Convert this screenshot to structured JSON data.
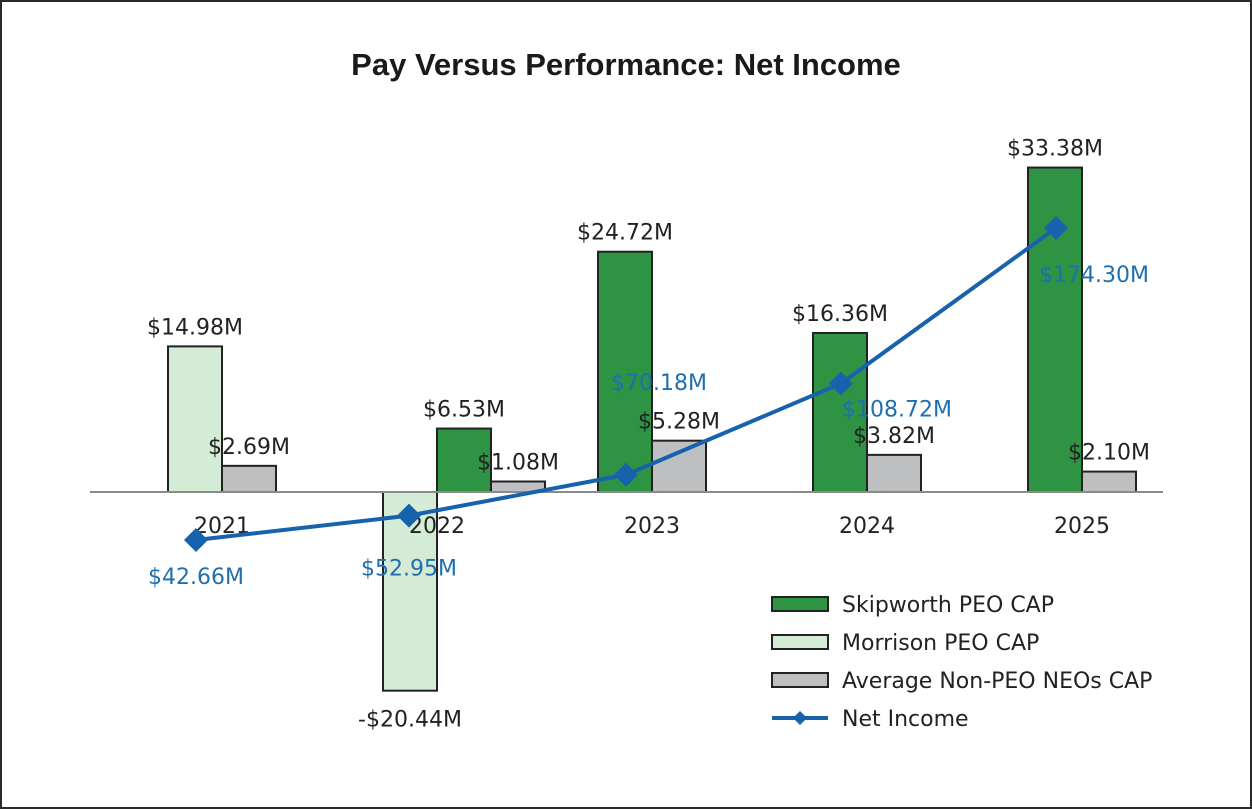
{
  "chart_data": {
    "type": "bar",
    "title": "Pay Versus Performance: Net Income",
    "categories": [
      "2021",
      "2022",
      "2023",
      "2024",
      "2025"
    ],
    "series": [
      {
        "name": "Skipworth PEO CAP",
        "color": "#2e9444",
        "values": [
          null,
          6.53,
          24.72,
          16.36,
          33.38
        ],
        "labels": [
          null,
          "$6.53M",
          "$24.72M",
          "$16.36M",
          "$33.38M"
        ]
      },
      {
        "name": "Morrison PEO CAP",
        "color": "#d4ebd6",
        "values": [
          14.98,
          -20.44,
          null,
          null,
          null
        ],
        "labels": [
          "$14.98M",
          "-$20.44M",
          null,
          null,
          null
        ]
      },
      {
        "name": "Average Non-PEO NEOs CAP",
        "color": "#bebfc1",
        "values": [
          2.69,
          1.08,
          5.28,
          3.82,
          2.1
        ],
        "labels": [
          "$2.69M",
          "$1.08M",
          "$5.28M",
          "$3.82M",
          "$2.10M"
        ]
      }
    ],
    "line_series": {
      "name": "Net Income",
      "color": "#1762ad",
      "values": [
        42.66,
        52.95,
        70.18,
        108.72,
        174.3
      ],
      "labels": [
        "$42.66M",
        "$52.95M",
        "$70.18M",
        "$108.72M",
        "$174.30M"
      ]
    },
    "legend": [
      "Skipworth PEO CAP",
      "Morrison PEO CAP",
      "Average Non-PEO NEOs CAP",
      "Net Income"
    ],
    "legend_position": "bottom-right",
    "xlabel": "",
    "ylabel": "",
    "grid": false
  }
}
